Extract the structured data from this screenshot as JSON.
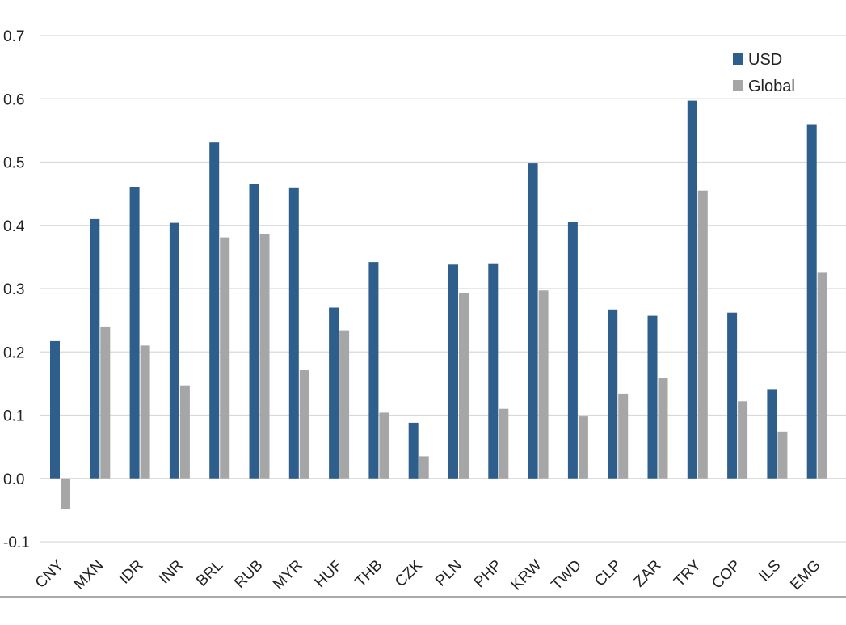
{
  "chart_data": {
    "type": "bar",
    "categories": [
      "CNY",
      "MXN",
      "IDR",
      "INR",
      "BRL",
      "RUB",
      "MYR",
      "HUF",
      "THB",
      "CZK",
      "PLN",
      "PHP",
      "KRW",
      "TWD",
      "CLP",
      "ZAR",
      "TRY",
      "COP",
      "ILS",
      "EMG"
    ],
    "series": [
      {
        "name": "USD",
        "color": "#2e5e8c",
        "values": [
          0.217,
          0.41,
          0.461,
          0.404,
          0.531,
          0.466,
          0.46,
          0.27,
          0.342,
          0.088,
          0.338,
          0.34,
          0.498,
          0.405,
          0.267,
          0.257,
          0.597,
          0.262,
          0.141,
          0.56
        ]
      },
      {
        "name": "Global",
        "color": "#a6a6a6",
        "values": [
          -0.048,
          0.24,
          0.21,
          0.147,
          0.381,
          0.386,
          0.172,
          0.234,
          0.104,
          0.035,
          0.293,
          0.11,
          0.297,
          0.098,
          0.134,
          0.159,
          0.455,
          0.122,
          0.074,
          0.325
        ]
      }
    ],
    "y_ticks": [
      "-0.1",
      "0.0",
      "0.1",
      "0.2",
      "0.3",
      "0.4",
      "0.5",
      "0.6",
      "0.7"
    ],
    "ylim": [
      -0.1,
      0.7
    ],
    "grid": true,
    "legend_position": "top-right",
    "title": "",
    "xlabel": "",
    "ylabel": ""
  }
}
